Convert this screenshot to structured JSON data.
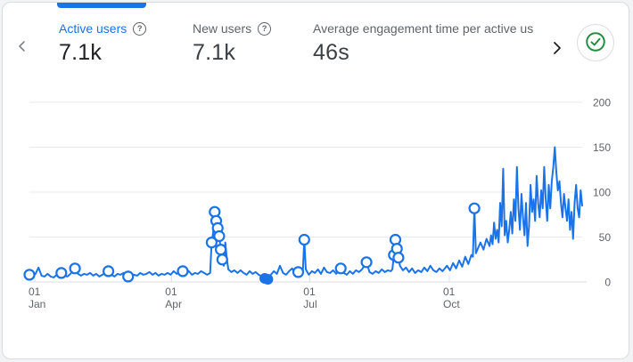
{
  "metrics": [
    {
      "label": "Active users",
      "value": "7.1k",
      "has_help": true,
      "active": true
    },
    {
      "label": "New users",
      "value": "7.1k",
      "has_help": true,
      "active": false
    },
    {
      "label": "Average engagement time per active us",
      "value": "46s",
      "has_help": false,
      "active": false
    }
  ],
  "icons": {
    "help_glyph": "?",
    "prev": "chevron-left",
    "next": "chevron-right",
    "status": "check-circle"
  },
  "colors": {
    "accent": "#1a73e8",
    "line": "#1a73e8",
    "grid": "#e8eaed",
    "axis_line": "#dadce0",
    "axis_text": "#5f6368",
    "value_text": "#202124",
    "label_text": "#5f6368",
    "success_green": "#1e8e3e",
    "card_border": "#dadce0"
  },
  "chart_data": {
    "type": "line",
    "series_name": "Active users per day",
    "x_unit": "day_of_year",
    "ylim": [
      0,
      200
    ],
    "y_ticks": [
      0,
      50,
      100,
      150,
      200
    ],
    "x_ticks": [
      {
        "day": 1,
        "top": "01",
        "bottom": "Jan"
      },
      {
        "day": 91,
        "top": "01",
        "bottom": "Apr"
      },
      {
        "day": 182,
        "top": "01",
        "bottom": "Jul"
      },
      {
        "day": 274,
        "top": "01",
        "bottom": "Oct"
      }
    ],
    "legend": "none",
    "grid": "horizontal",
    "series": [
      {
        "name": "Active users",
        "points": [
          [
            1,
            8
          ],
          [
            3,
            6
          ],
          [
            5,
            9
          ],
          [
            7,
            16
          ],
          [
            9,
            7
          ],
          [
            11,
            6
          ],
          [
            13,
            9
          ],
          [
            15,
            6
          ],
          [
            17,
            5
          ],
          [
            19,
            8
          ],
          [
            21,
            8
          ],
          [
            22,
            10
          ],
          [
            24,
            7
          ],
          [
            26,
            6
          ],
          [
            28,
            9
          ],
          [
            30,
            13
          ],
          [
            31,
            15
          ],
          [
            33,
            9
          ],
          [
            35,
            7
          ],
          [
            37,
            9
          ],
          [
            39,
            8
          ],
          [
            41,
            10
          ],
          [
            43,
            7
          ],
          [
            45,
            9
          ],
          [
            47,
            6
          ],
          [
            49,
            8
          ],
          [
            51,
            10
          ],
          [
            53,
            12
          ],
          [
            55,
            8
          ],
          [
            57,
            6
          ],
          [
            59,
            9
          ],
          [
            61,
            8
          ],
          [
            63,
            10
          ],
          [
            65,
            9
          ],
          [
            66,
            6
          ],
          [
            68,
            5
          ],
          [
            70,
            8
          ],
          [
            72,
            7
          ],
          [
            74,
            10
          ],
          [
            76,
            8
          ],
          [
            78,
            9
          ],
          [
            80,
            11
          ],
          [
            82,
            8
          ],
          [
            84,
            10
          ],
          [
            86,
            7
          ],
          [
            88,
            9
          ],
          [
            90,
            8
          ],
          [
            92,
            10
          ],
          [
            94,
            8
          ],
          [
            96,
            12
          ],
          [
            98,
            9
          ],
          [
            100,
            11
          ],
          [
            102,
            12
          ],
          [
            104,
            9
          ],
          [
            106,
            12
          ],
          [
            108,
            8
          ],
          [
            110,
            10
          ],
          [
            112,
            9
          ],
          [
            114,
            12
          ],
          [
            116,
            10
          ],
          [
            118,
            8
          ],
          [
            120,
            10
          ],
          [
            121,
            44
          ],
          [
            122,
            55
          ],
          [
            123,
            78
          ],
          [
            124,
            68
          ],
          [
            125,
            60
          ],
          [
            126,
            51
          ],
          [
            127,
            36
          ],
          [
            128,
            25
          ],
          [
            129,
            18
          ],
          [
            130,
            44
          ],
          [
            131,
            26
          ],
          [
            132,
            14
          ],
          [
            134,
            11
          ],
          [
            136,
            13
          ],
          [
            138,
            10
          ],
          [
            140,
            13
          ],
          [
            142,
            10
          ],
          [
            144,
            8
          ],
          [
            146,
            12
          ],
          [
            148,
            9
          ],
          [
            150,
            11
          ],
          [
            152,
            8
          ],
          [
            154,
            6
          ],
          [
            156,
            4
          ],
          [
            158,
            3
          ],
          [
            160,
            8
          ],
          [
            162,
            12
          ],
          [
            164,
            9
          ],
          [
            166,
            18
          ],
          [
            168,
            10
          ],
          [
            170,
            8
          ],
          [
            172,
            12
          ],
          [
            174,
            15
          ],
          [
            176,
            9
          ],
          [
            178,
            11
          ],
          [
            180,
            9
          ],
          [
            181,
            10
          ],
          [
            182,
            47
          ],
          [
            183,
            14
          ],
          [
            185,
            8
          ],
          [
            187,
            12
          ],
          [
            189,
            10
          ],
          [
            191,
            14
          ],
          [
            193,
            9
          ],
          [
            195,
            16
          ],
          [
            197,
            11
          ],
          [
            199,
            10
          ],
          [
            201,
            13
          ],
          [
            203,
            9
          ],
          [
            205,
            13
          ],
          [
            206,
            15
          ],
          [
            208,
            10
          ],
          [
            210,
            8
          ],
          [
            212,
            12
          ],
          [
            214,
            9
          ],
          [
            216,
            13
          ],
          [
            218,
            11
          ],
          [
            220,
            14
          ],
          [
            223,
            22
          ],
          [
            225,
            11
          ],
          [
            227,
            9
          ],
          [
            229,
            12
          ],
          [
            231,
            10
          ],
          [
            233,
            14
          ],
          [
            235,
            11
          ],
          [
            237,
            13
          ],
          [
            239,
            12
          ],
          [
            240,
            14
          ],
          [
            241,
            30
          ],
          [
            242,
            47
          ],
          [
            243,
            37
          ],
          [
            244,
            27
          ],
          [
            245,
            18
          ],
          [
            247,
            13
          ],
          [
            249,
            16
          ],
          [
            251,
            11
          ],
          [
            253,
            15
          ],
          [
            255,
            10
          ],
          [
            257,
            13
          ],
          [
            259,
            11
          ],
          [
            261,
            16
          ],
          [
            263,
            12
          ],
          [
            265,
            18
          ],
          [
            267,
            13
          ],
          [
            269,
            11
          ],
          [
            271,
            15
          ],
          [
            273,
            12
          ],
          [
            274,
            14
          ],
          [
            276,
            18
          ],
          [
            278,
            13
          ],
          [
            280,
            21
          ],
          [
            282,
            15
          ],
          [
            284,
            24
          ],
          [
            286,
            17
          ],
          [
            288,
            28
          ],
          [
            290,
            20
          ],
          [
            292,
            30
          ],
          [
            293,
            28
          ],
          [
            294,
            82
          ],
          [
            295,
            32
          ],
          [
            296,
            36
          ],
          [
            298,
            44
          ],
          [
            300,
            36
          ],
          [
            302,
            48
          ],
          [
            304,
            40
          ],
          [
            305,
            52
          ],
          [
            306,
            42
          ],
          [
            307,
            66
          ],
          [
            308,
            48
          ],
          [
            309,
            58
          ],
          [
            310,
            44
          ],
          [
            311,
            88
          ],
          [
            312,
            62
          ],
          [
            313,
            126
          ],
          [
            314,
            52
          ],
          [
            315,
            68
          ],
          [
            316,
            44
          ],
          [
            317,
            58
          ],
          [
            318,
            78
          ],
          [
            319,
            54
          ],
          [
            320,
            92
          ],
          [
            321,
            68
          ],
          [
            322,
            128
          ],
          [
            323,
            82
          ],
          [
            324,
            58
          ],
          [
            325,
            98
          ],
          [
            326,
            72
          ],
          [
            327,
            52
          ],
          [
            328,
            88
          ],
          [
            329,
            40
          ],
          [
            330,
            62
          ],
          [
            331,
            108
          ],
          [
            332,
            78
          ],
          [
            333,
            92
          ],
          [
            334,
            68
          ],
          [
            335,
            118
          ],
          [
            336,
            88
          ],
          [
            337,
            72
          ],
          [
            338,
            102
          ],
          [
            339,
            82
          ],
          [
            340,
            128
          ],
          [
            341,
            92
          ],
          [
            342,
            68
          ],
          [
            343,
            108
          ],
          [
            344,
            82
          ],
          [
            345,
            112
          ],
          [
            346,
            128
          ],
          [
            347,
            150
          ],
          [
            348,
            122
          ],
          [
            349,
            102
          ],
          [
            350,
            112
          ],
          [
            351,
            88
          ],
          [
            352,
            72
          ],
          [
            353,
            98
          ],
          [
            354,
            82
          ],
          [
            355,
            68
          ],
          [
            356,
            92
          ],
          [
            357,
            58
          ],
          [
            358,
            78
          ],
          [
            359,
            48
          ],
          [
            360,
            88
          ],
          [
            361,
            108
          ],
          [
            362,
            82
          ],
          [
            363,
            72
          ],
          [
            364,
            102
          ],
          [
            365,
            85
          ]
        ]
      }
    ],
    "markers_open": [
      [
        1,
        8
      ],
      [
        22,
        10
      ],
      [
        31,
        15
      ],
      [
        53,
        12
      ],
      [
        66,
        6
      ],
      [
        102,
        12
      ],
      [
        121,
        44
      ],
      [
        123,
        78
      ],
      [
        124,
        68
      ],
      [
        125,
        60
      ],
      [
        126,
        51
      ],
      [
        127,
        36
      ],
      [
        128,
        25
      ],
      [
        178,
        11
      ],
      [
        182,
        47
      ],
      [
        206,
        15
      ],
      [
        223,
        22
      ],
      [
        241,
        30
      ],
      [
        242,
        47
      ],
      [
        243,
        37
      ],
      [
        244,
        27
      ],
      [
        294,
        82
      ]
    ],
    "markers_filled": [
      [
        156,
        4
      ],
      [
        158,
        3
      ]
    ]
  }
}
